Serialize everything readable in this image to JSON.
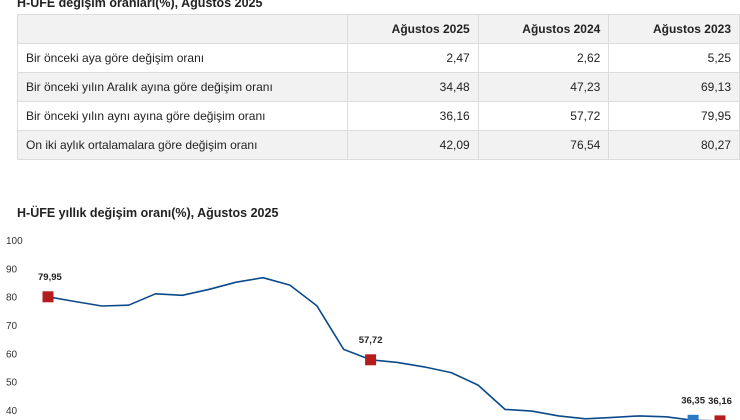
{
  "table": {
    "title": "H-ÜFE değişim oranları(%), Ağustos 2025",
    "headers": [
      "",
      "Ağustos 2025",
      "Ağustos 2024",
      "Ağustos 2023"
    ],
    "rows": [
      {
        "label": "Bir önceki aya göre değişim oranı",
        "values": [
          "2,47",
          "2,62",
          "5,25"
        ]
      },
      {
        "label": "Bir önceki yılın Aralık ayına göre değişim oranı",
        "values": [
          "34,48",
          "47,23",
          "69,13"
        ]
      },
      {
        "label": "Bir önceki yılın aynı ayına göre değişim oranı",
        "values": [
          "36,16",
          "57,72",
          "79,95"
        ]
      },
      {
        "label": "On iki aylık ortalamalara göre değişim oranı",
        "values": [
          "42,09",
          "76,54",
          "80,27"
        ]
      }
    ]
  },
  "chart_data": {
    "type": "line",
    "title": "H-ÜFE yıllık değişim oranı(%), Ağustos 2025",
    "xlabel": "",
    "ylabel": "",
    "ylim": [
      40,
      100
    ],
    "yticks": [
      "100",
      "90",
      "80",
      "70",
      "60",
      "50",
      "40"
    ],
    "grid": false,
    "series": [
      {
        "values": [
          79.95,
          78.3,
          76.7,
          77.0,
          81.0,
          80.5,
          82.6,
          85.1,
          86.7,
          84.1,
          76.8,
          61.4,
          57.72,
          56.8,
          55.2,
          53.2,
          48.8,
          40.2,
          39.6,
          37.9,
          36.9,
          37.4,
          37.9,
          37.6,
          36.35,
          36.16
        ],
        "color": "#0b4a8a"
      }
    ],
    "markers": [
      {
        "index": 0,
        "label": "79,95",
        "color": "#b51d1d"
      },
      {
        "index": 12,
        "label": "57,72",
        "color": "#b51d1d"
      },
      {
        "index": 24,
        "label": "36,35",
        "color": "#2b7bc4"
      },
      {
        "index": 25,
        "label": "36,16",
        "color": "#b51d1d"
      }
    ]
  }
}
